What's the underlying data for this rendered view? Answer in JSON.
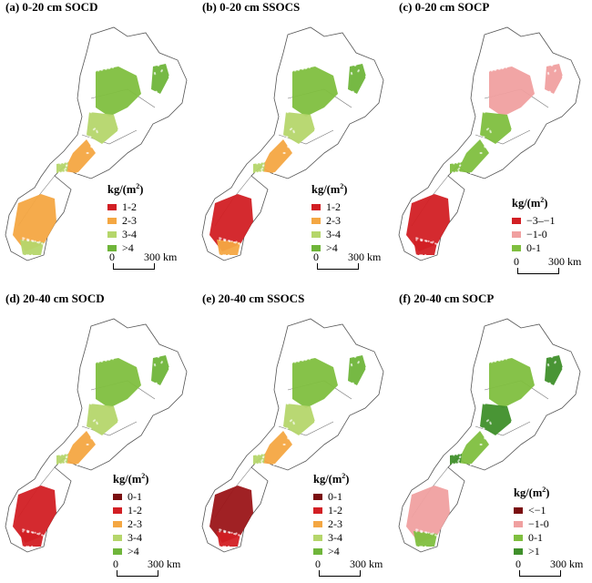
{
  "panels": [
    {
      "id": "a",
      "title": "(a) 0-20 cm SOCD",
      "legend_title": "kg/(m",
      "legend_sup": "2",
      "legend_close": ")",
      "items": [
        {
          "label": "1-2",
          "color": "#d21f24"
        },
        {
          "label": "2-3",
          "color": "#f4a742"
        },
        {
          "label": "3-4",
          "color": "#b5d66b"
        },
        {
          "label": ">4",
          "color": "#6fb53a"
        }
      ],
      "scale": {
        "zero": "0",
        "distance": "300 km"
      },
      "fills": {
        "north": "#7fbf3f",
        "mid": "#b5d66b",
        "belt": "#f4a742",
        "south": "#f4a742",
        "south2": "#b5d66b",
        "east": "#6fb53a"
      }
    },
    {
      "id": "b",
      "title": "(b) 0-20 cm SSOCS",
      "legend_title": "kg/(m",
      "legend_sup": "2",
      "legend_close": ")",
      "items": [
        {
          "label": "1-2",
          "color": "#d21f24"
        },
        {
          "label": "2-3",
          "color": "#f4a742"
        },
        {
          "label": "3-4",
          "color": "#b5d66b"
        },
        {
          "label": ">4",
          "color": "#6fb53a"
        }
      ],
      "scale": {
        "zero": "0",
        "distance": "300 km"
      },
      "fills": {
        "north": "#7fbf3f",
        "mid": "#b5d66b",
        "belt": "#f4a742",
        "south": "#d21f24",
        "south2": "#f4a742",
        "east": "#6fb53a"
      }
    },
    {
      "id": "c",
      "title": "(c) 0-20 cm SOCP",
      "legend_title": "kg/(m",
      "legend_sup": "2",
      "legend_close": ")",
      "items": [
        {
          "label": "−3–−1",
          "color": "#d21f24"
        },
        {
          "label": "−1-0",
          "color": "#f0a0a0"
        },
        {
          "label": "0-1",
          "color": "#7fbf3f"
        }
      ],
      "scale": {
        "zero": "0",
        "distance": "300 km"
      },
      "fills": {
        "north": "#f0a0a0",
        "mid": "#7fbf3f",
        "belt": "#7fbf3f",
        "south": "#d21f24",
        "south2": "#d21f24",
        "east": "#f0a0a0"
      }
    },
    {
      "id": "d",
      "title": "(d) 20-40 cm SOCD",
      "legend_title": "kg/(m",
      "legend_sup": "2",
      "legend_close": ")",
      "items": [
        {
          "label": "0-1",
          "color": "#7a0f10"
        },
        {
          "label": "1-2",
          "color": "#d21f24"
        },
        {
          "label": "2-3",
          "color": "#f4a742"
        },
        {
          "label": "3-4",
          "color": "#b5d66b"
        },
        {
          "label": ">4",
          "color": "#6fb53a"
        }
      ],
      "scale": {
        "zero": "0",
        "distance": "300 km"
      },
      "fills": {
        "north": "#7fbf3f",
        "mid": "#b5d66b",
        "belt": "#f4a742",
        "south": "#d21f24",
        "south2": "#d21f24",
        "east": "#6fb53a"
      }
    },
    {
      "id": "e",
      "title": "(e) 20-40 cm SSOCS",
      "legend_title": "kg/(m",
      "legend_sup": "2",
      "legend_close": ")",
      "items": [
        {
          "label": "0-1",
          "color": "#7a0f10"
        },
        {
          "label": "1-2",
          "color": "#d21f24"
        },
        {
          "label": "2-3",
          "color": "#f4a742"
        },
        {
          "label": "3-4",
          "color": "#b5d66b"
        },
        {
          "label": ">4",
          "color": "#6fb53a"
        }
      ],
      "scale": {
        "zero": "0",
        "distance": "300 km"
      },
      "fills": {
        "north": "#7fbf3f",
        "mid": "#b5d66b",
        "belt": "#f4a742",
        "south": "#9b1518",
        "south2": "#d21f24",
        "east": "#6fb53a"
      }
    },
    {
      "id": "f",
      "title": "(f) 20-40 cm SOCP",
      "legend_title": "kg/(m",
      "legend_sup": "2",
      "legend_close": ")",
      "items": [
        {
          "label": "<−1",
          "color": "#7a0f10"
        },
        {
          "label": "−1-0",
          "color": "#f0a0a0"
        },
        {
          "label": "0-1",
          "color": "#7fbf3f"
        },
        {
          "label": ">1",
          "color": "#3f8f2a"
        }
      ],
      "scale": {
        "zero": "0",
        "distance": "300 km"
      },
      "fills": {
        "north": "#7fbf3f",
        "mid": "#3f8f2a",
        "belt": "#7fbf3f",
        "south": "#f0a0a0",
        "south2": "#7fbf3f",
        "east": "#3f8f2a"
      }
    }
  ]
}
